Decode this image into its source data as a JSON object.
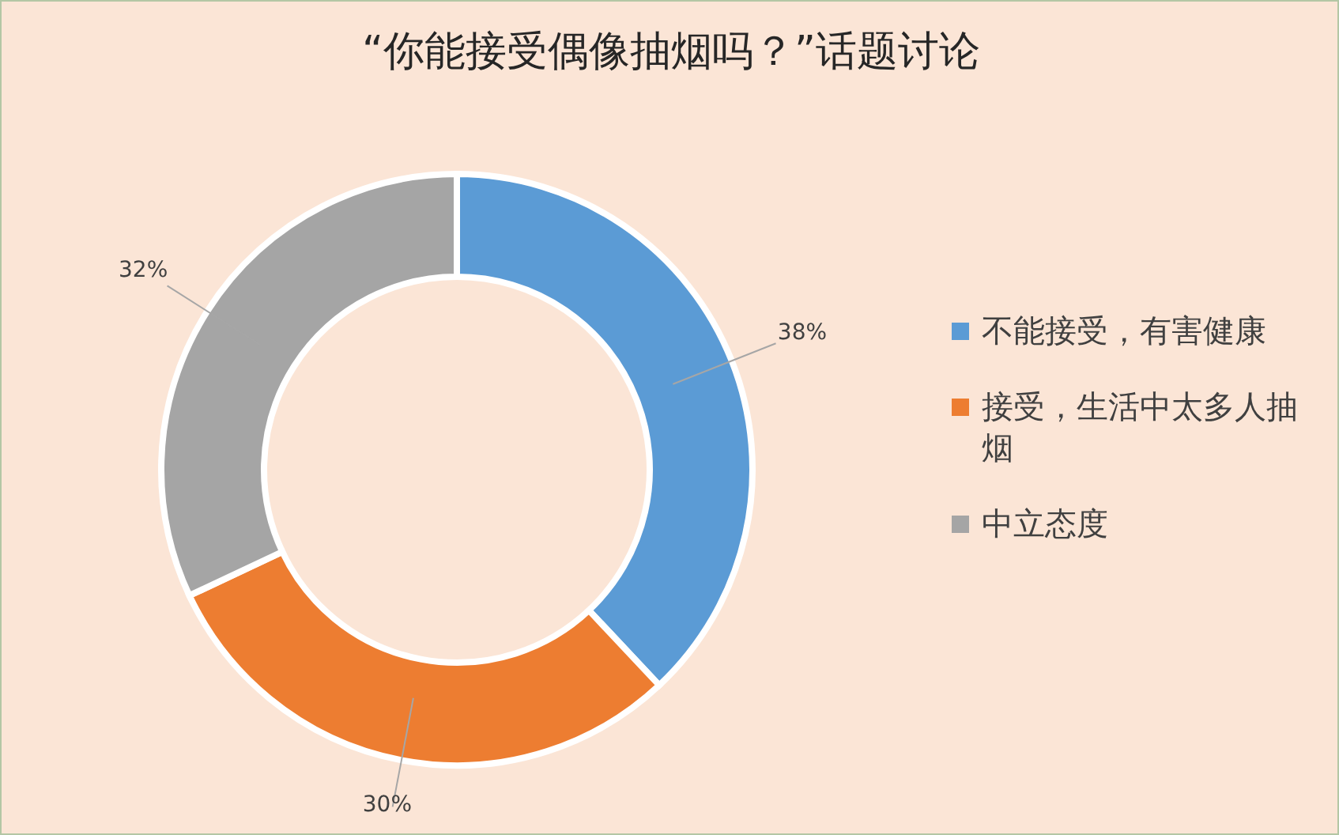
{
  "chart_data": {
    "type": "donut",
    "title": "“你能接受偶像抽烟吗？”话题讨论",
    "categories": [
      "不能接受，有害健康",
      "接受，生活中太多人抽烟",
      "中立态度"
    ],
    "values": [
      38,
      30,
      32
    ],
    "colors": [
      "#5b9bd5",
      "#ed7d31",
      "#a5a5a5"
    ],
    "value_labels": [
      "38%",
      "30%",
      "32%"
    ],
    "legend": "right"
  }
}
